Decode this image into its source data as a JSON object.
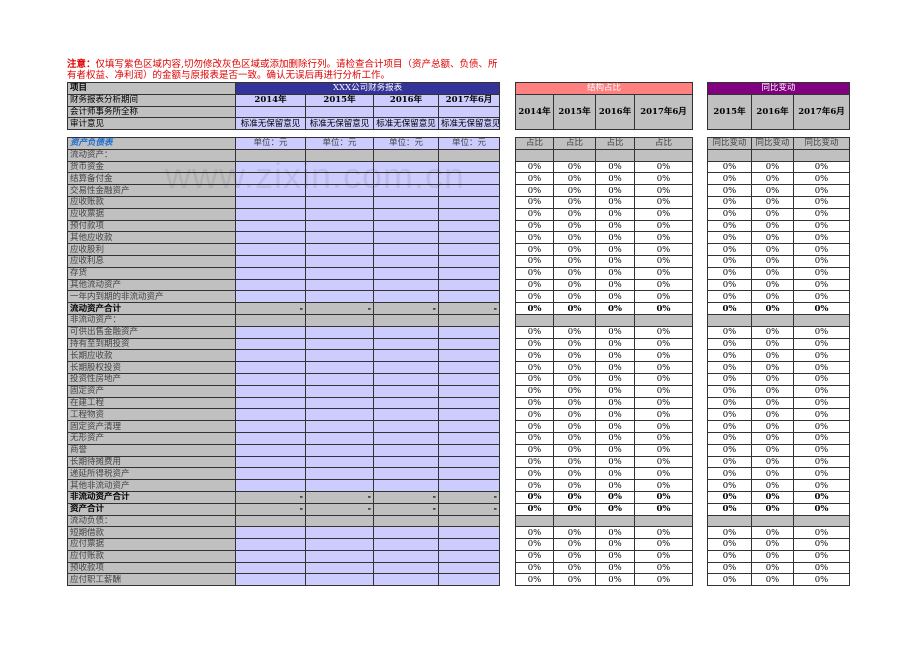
{
  "note": {
    "label": "注意：",
    "text": "仅填写紫色区域内容,切勿修改灰色区域或添加删除行列。请检查合计项目（资产总额、负债、所有者权益、净利润）的金额与原报表是否一致。确认无误后再进行分析工作。"
  },
  "watermark": "www.zixin.com.cn",
  "header": {
    "item_label": "项目",
    "report_title": "XXX公司财务报表",
    "rows": [
      "财务报表分析期间",
      "会计师事务所全称",
      "审计意见"
    ],
    "periods": [
      "2014年",
      "2015年",
      "2016年",
      "2017年6月"
    ],
    "audit_opinions": [
      "标准无保留意见",
      "标准无保留意见",
      "标准无保留意见",
      "标准无保留意见"
    ]
  },
  "structure": {
    "title": "结构占比",
    "periods": [
      "2014年",
      "2015年",
      "2016年",
      "2017年6月"
    ],
    "col_label": "占比"
  },
  "yoy": {
    "title": "同比变动",
    "periods": [
      "2015年",
      "2016年",
      "2017年6月"
    ],
    "col_label": "同比变动"
  },
  "balance": {
    "title": "资产负债表",
    "unit": "单位：元",
    "rows": [
      {
        "label": "流动资产：",
        "type": "section"
      },
      {
        "label": "货币资金",
        "type": "input"
      },
      {
        "label": "结算备付金",
        "type": "input"
      },
      {
        "label": "交易性金融资产",
        "type": "input"
      },
      {
        "label": "应收账款",
        "type": "input"
      },
      {
        "label": "应收票据",
        "type": "input"
      },
      {
        "label": "预付款项",
        "type": "input"
      },
      {
        "label": "其他应收款",
        "type": "input"
      },
      {
        "label": "应收股利",
        "type": "input"
      },
      {
        "label": "应收利息",
        "type": "input"
      },
      {
        "label": "存货",
        "type": "input"
      },
      {
        "label": "其他流动资产",
        "type": "input"
      },
      {
        "label": "一年内到期的非流动资产",
        "type": "input"
      },
      {
        "label": "流动资产合计",
        "type": "total"
      },
      {
        "label": "非流动资产：",
        "type": "section"
      },
      {
        "label": "可供出售金融资产",
        "type": "input"
      },
      {
        "label": "持有至到期投资",
        "type": "input"
      },
      {
        "label": "长期应收款",
        "type": "input"
      },
      {
        "label": "长期股权投资",
        "type": "input"
      },
      {
        "label": "投资性房地产",
        "type": "input"
      },
      {
        "label": "固定资产",
        "type": "input"
      },
      {
        "label": "在建工程",
        "type": "input"
      },
      {
        "label": "工程物资",
        "type": "input"
      },
      {
        "label": "固定资产清理",
        "type": "input"
      },
      {
        "label": "无形资产",
        "type": "input"
      },
      {
        "label": "商誉",
        "type": "input"
      },
      {
        "label": "长期待摊费用",
        "type": "input"
      },
      {
        "label": "递延所得税资产",
        "type": "input"
      },
      {
        "label": "其他非流动资产",
        "type": "input"
      },
      {
        "label": "非流动资产合计",
        "type": "total"
      },
      {
        "label": "资产合计",
        "type": "total"
      },
      {
        "label": "流动负债：",
        "type": "section"
      },
      {
        "label": "短期借款",
        "type": "input"
      },
      {
        "label": "应付票据",
        "type": "input"
      },
      {
        "label": "应付账款",
        "type": "input"
      },
      {
        "label": "预收款项",
        "type": "input"
      },
      {
        "label": "应付职工薪酬",
        "type": "input"
      }
    ],
    "total_value": "-",
    "pct_value": "0%"
  }
}
